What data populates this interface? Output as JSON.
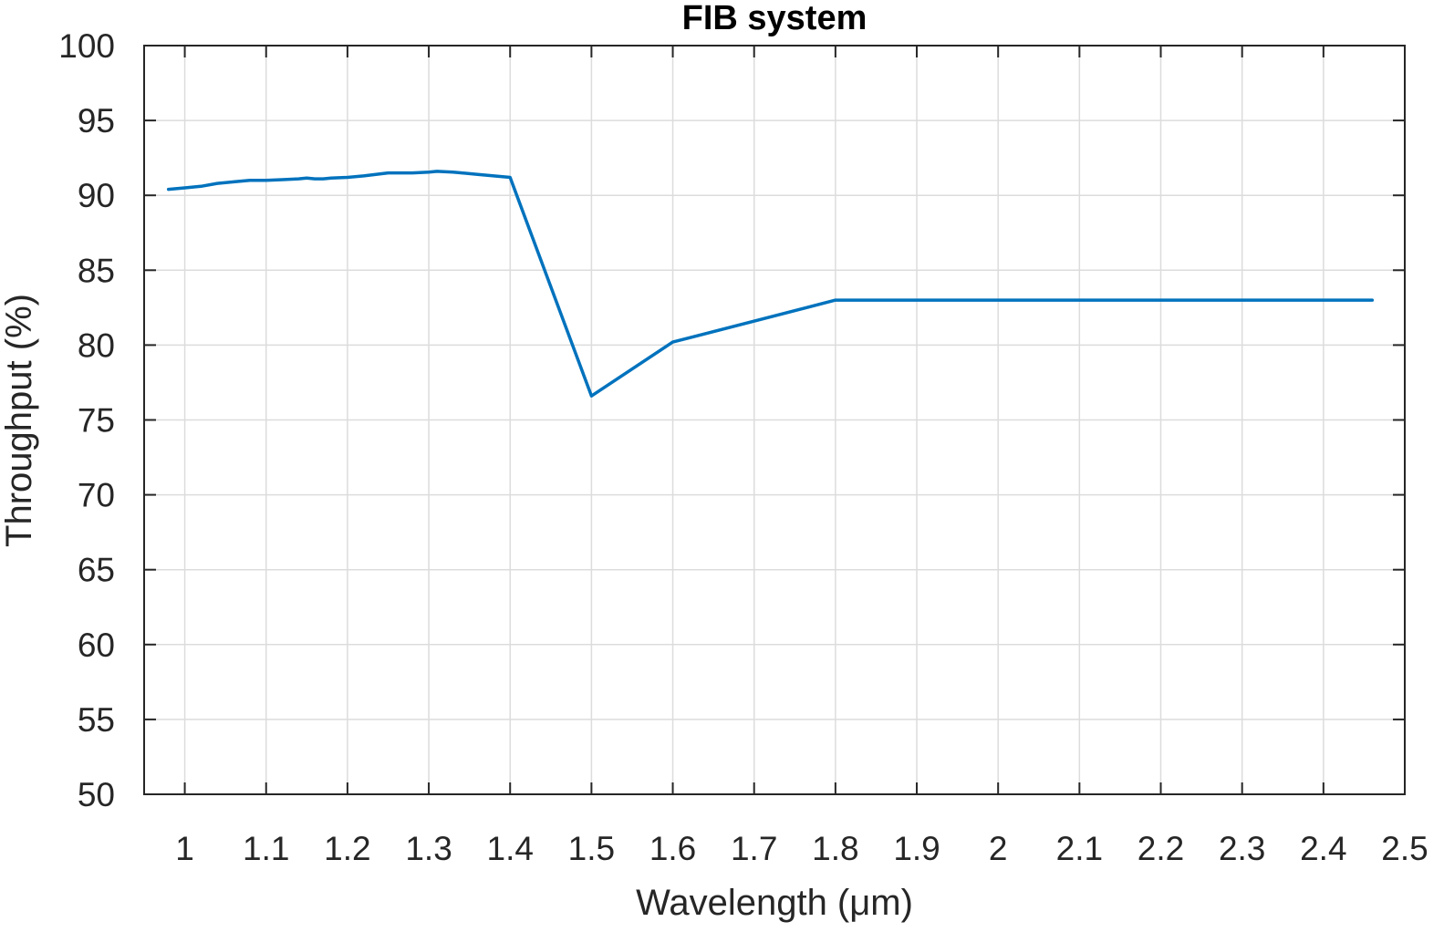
{
  "chart_data": {
    "type": "line",
    "title": "FIB system",
    "xlabel": "Wavelength (μm)",
    "ylabel": "Throughput (%)",
    "xlim": [
      0.95,
      2.5
    ],
    "ylim": [
      50,
      100
    ],
    "xticks": [
      1,
      1.1,
      1.2,
      1.3,
      1.4,
      1.5,
      1.6,
      1.7,
      1.8,
      1.9,
      2,
      2.1,
      2.2,
      2.3,
      2.4,
      2.5
    ],
    "xtick_labels": [
      "1",
      "1.1",
      "1.2",
      "1.3",
      "1.4",
      "1.5",
      "1.6",
      "1.7",
      "1.8",
      "1.9",
      "2",
      "2.1",
      "2.2",
      "2.3",
      "2.4",
      "2.5"
    ],
    "yticks": [
      50,
      55,
      60,
      65,
      70,
      75,
      80,
      85,
      90,
      95,
      100
    ],
    "ytick_labels": [
      "50",
      "55",
      "60",
      "65",
      "70",
      "75",
      "80",
      "85",
      "90",
      "95",
      "100"
    ],
    "grid": true,
    "series": [
      {
        "color": "#0072BD",
        "x": [
          0.98,
          1.0,
          1.02,
          1.04,
          1.06,
          1.08,
          1.1,
          1.12,
          1.14,
          1.15,
          1.16,
          1.17,
          1.18,
          1.2,
          1.22,
          1.25,
          1.28,
          1.3,
          1.31,
          1.33,
          1.36,
          1.4,
          1.5,
          1.6,
          1.8,
          2.0,
          2.2,
          2.46
        ],
        "y": [
          90.4,
          90.5,
          90.6,
          90.8,
          90.9,
          91.0,
          91.0,
          91.05,
          91.1,
          91.15,
          91.1,
          91.1,
          91.15,
          91.2,
          91.3,
          91.5,
          91.5,
          91.55,
          91.6,
          91.55,
          91.4,
          91.2,
          76.6,
          80.2,
          83.0,
          83.0,
          83.0,
          83.0
        ]
      }
    ]
  }
}
